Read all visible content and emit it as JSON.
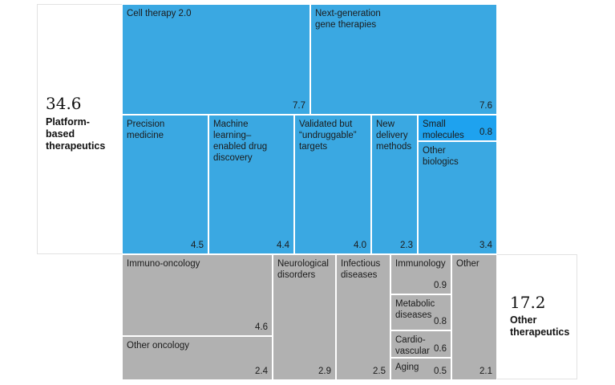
{
  "chart_data": {
    "type": "treemap",
    "groups": [
      {
        "total": "34.6",
        "label": "Platform-\nbased\ntherapeutics",
        "color": "#3aa8e2",
        "items": [
          {
            "name": "Cell therapy 2.0",
            "value": 7.7
          },
          {
            "name": "Next-generation\ngene therapies",
            "value": 7.6
          },
          {
            "name": "Precision\nmedicine",
            "value": 4.5
          },
          {
            "name": "Machine\nlearning–\nenabled drug\ndiscovery",
            "value": 4.4
          },
          {
            "name": "Validated but\n“undruggable”\ntargets",
            "value": 4.0
          },
          {
            "name": "New\ndelivery\nmethods",
            "value": 2.3
          },
          {
            "name": "Small\nmolecules",
            "value": 0.8
          },
          {
            "name": "Other\nbiologics",
            "value": 3.4
          }
        ]
      },
      {
        "total": "17.2",
        "label": "Other\ntherapeutics",
        "color": "#b1b1b1",
        "items": [
          {
            "name": "Immuno-oncology",
            "value": 4.6
          },
          {
            "name": "Other oncology",
            "value": 2.4
          },
          {
            "name": "Neurological\ndisorders",
            "value": 2.9
          },
          {
            "name": "Infectious\ndiseases",
            "value": 2.5
          },
          {
            "name": "Immunology",
            "value": 0.9
          },
          {
            "name": "Metabolic\ndiseases",
            "value": 0.8
          },
          {
            "name": "Cardio-\nvascular",
            "value": 0.6
          },
          {
            "name": "Aging",
            "value": 0.5
          },
          {
            "name": "Other",
            "value": 2.1
          }
        ]
      }
    ],
    "highlight_color": "#1ea2ef"
  }
}
